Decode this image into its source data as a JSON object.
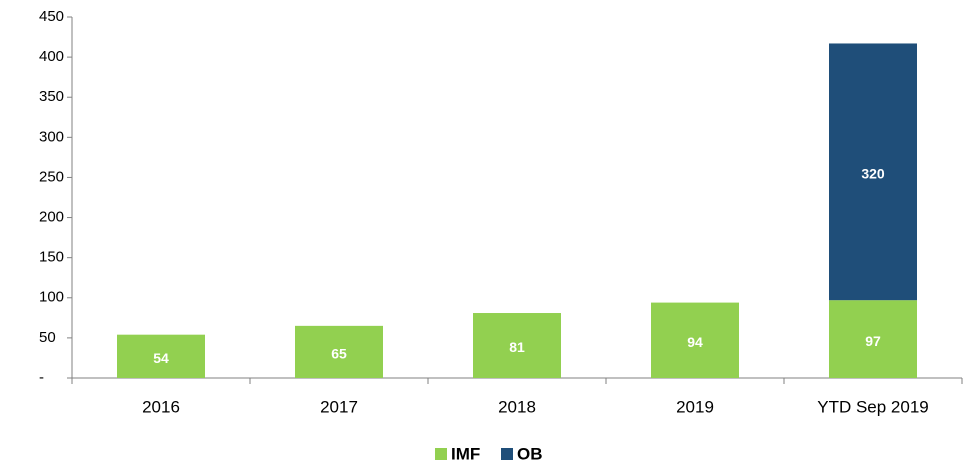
{
  "chart_data": {
    "type": "stacked-bar",
    "categories": [
      "2016",
      "2017",
      "2018",
      "2019",
      "YTD Sep 2019"
    ],
    "series": [
      {
        "name": "IMF",
        "color": "#92d050",
        "values": [
          54,
          65,
          81,
          94,
          97
        ]
      },
      {
        "name": "OB",
        "color": "#1f4e79",
        "values": [
          null,
          null,
          null,
          null,
          320
        ]
      }
    ],
    "ylim": [
      0,
      450
    ],
    "yticks": [
      {
        "value": 0,
        "label": "-"
      },
      50,
      100,
      150,
      200,
      250,
      300,
      350,
      400,
      450
    ],
    "grid": false,
    "legend": "bottom"
  }
}
